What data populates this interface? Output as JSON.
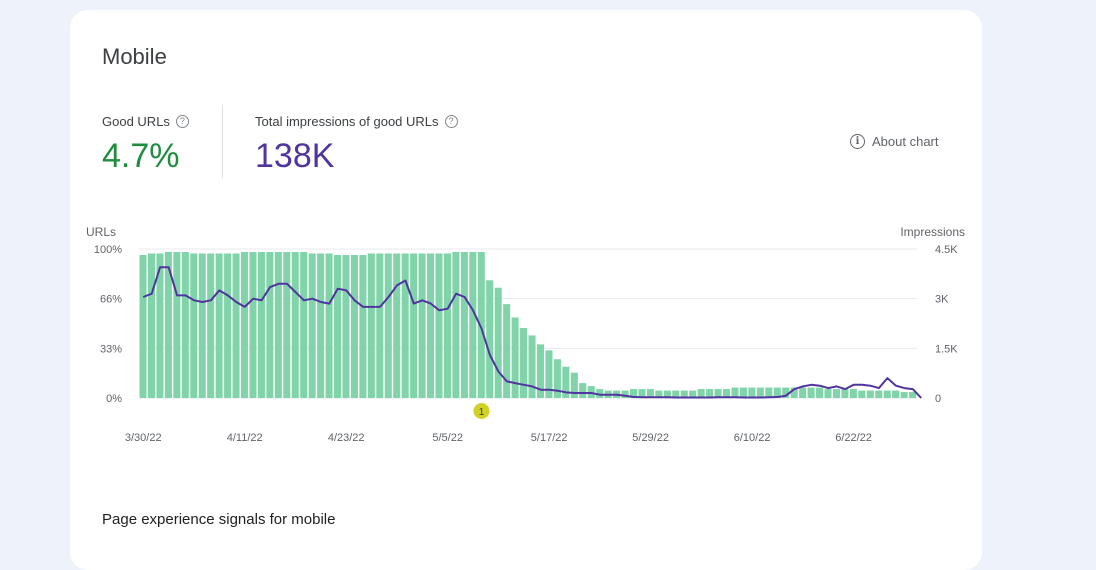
{
  "card": {
    "title": "Mobile",
    "about_label": "About chart",
    "metrics": [
      {
        "label": "Good URLs",
        "value": "4.7%"
      },
      {
        "label": "Total impressions of good URLs",
        "value": "138K"
      }
    ]
  },
  "section_title": "Page experience signals for mobile",
  "colors": {
    "bars": "#81d4a9",
    "line": "#5034a0",
    "good_value": "#1e8e3e",
    "impressions_value": "#5034a0",
    "annotation": "#c9c900"
  },
  "chart_data": {
    "type": "bar",
    "left_axis": {
      "label": "URLs",
      "ticks": [
        "100%",
        "66%",
        "33%",
        "0%"
      ],
      "range": [
        0,
        100
      ]
    },
    "right_axis": {
      "label": "Impressions",
      "ticks": [
        "4.5K",
        "3K",
        "1.5K",
        "0"
      ],
      "range": [
        0,
        4500
      ]
    },
    "x_ticks": [
      "3/30/22",
      "4/11/22",
      "4/23/22",
      "5/5/22",
      "5/17/22",
      "5/29/22",
      "6/10/22",
      "6/22/22"
    ],
    "annotation": {
      "label": "1",
      "date": "5/9/22"
    },
    "series": [
      {
        "axis": "left",
        "kind": "bar",
        "values": [
          96,
          97,
          97,
          98,
          98,
          98,
          97,
          97,
          97,
          97,
          97,
          97,
          98,
          98,
          98,
          98,
          98,
          98,
          98,
          98,
          97,
          97,
          97,
          96,
          96,
          96,
          96,
          97,
          97,
          97,
          97,
          97,
          97,
          97,
          97,
          97,
          97,
          98,
          98,
          98,
          98,
          79,
          74,
          63,
          54,
          47,
          42,
          36,
          32,
          26,
          21,
          17,
          10,
          8,
          6,
          5,
          5,
          5,
          6,
          6,
          6,
          5,
          5,
          5,
          5,
          5,
          6,
          6,
          6,
          6,
          7,
          7,
          7,
          7,
          7,
          7,
          7,
          7,
          7,
          7,
          7,
          6,
          6,
          6,
          6,
          5,
          5,
          5,
          5,
          5,
          4,
          4
        ],
        "start_date": "3/30/22"
      },
      {
        "axis": "right",
        "kind": "line",
        "values": [
          3050,
          3150,
          3950,
          3950,
          3100,
          3100,
          2950,
          2900,
          2950,
          3250,
          3100,
          2900,
          2750,
          3000,
          2950,
          3350,
          3450,
          3450,
          3200,
          2950,
          3000,
          2900,
          2850,
          3300,
          3250,
          2950,
          2750,
          2750,
          2750,
          3050,
          3400,
          3550,
          2850,
          2950,
          2850,
          2650,
          2700,
          3150,
          3050,
          2650,
          2100,
          1300,
          800,
          500,
          450,
          400,
          350,
          250,
          250,
          220,
          170,
          150,
          150,
          150,
          100,
          100,
          100,
          70,
          30,
          20,
          20,
          20,
          20,
          15,
          15,
          15,
          15,
          15,
          20,
          20,
          20,
          15,
          15,
          15,
          20,
          30,
          70,
          270,
          350,
          400,
          370,
          300,
          350,
          270,
          400,
          400,
          370,
          300,
          600,
          370,
          300,
          270,
          0
        ],
        "start_date": "3/30/22"
      }
    ]
  }
}
